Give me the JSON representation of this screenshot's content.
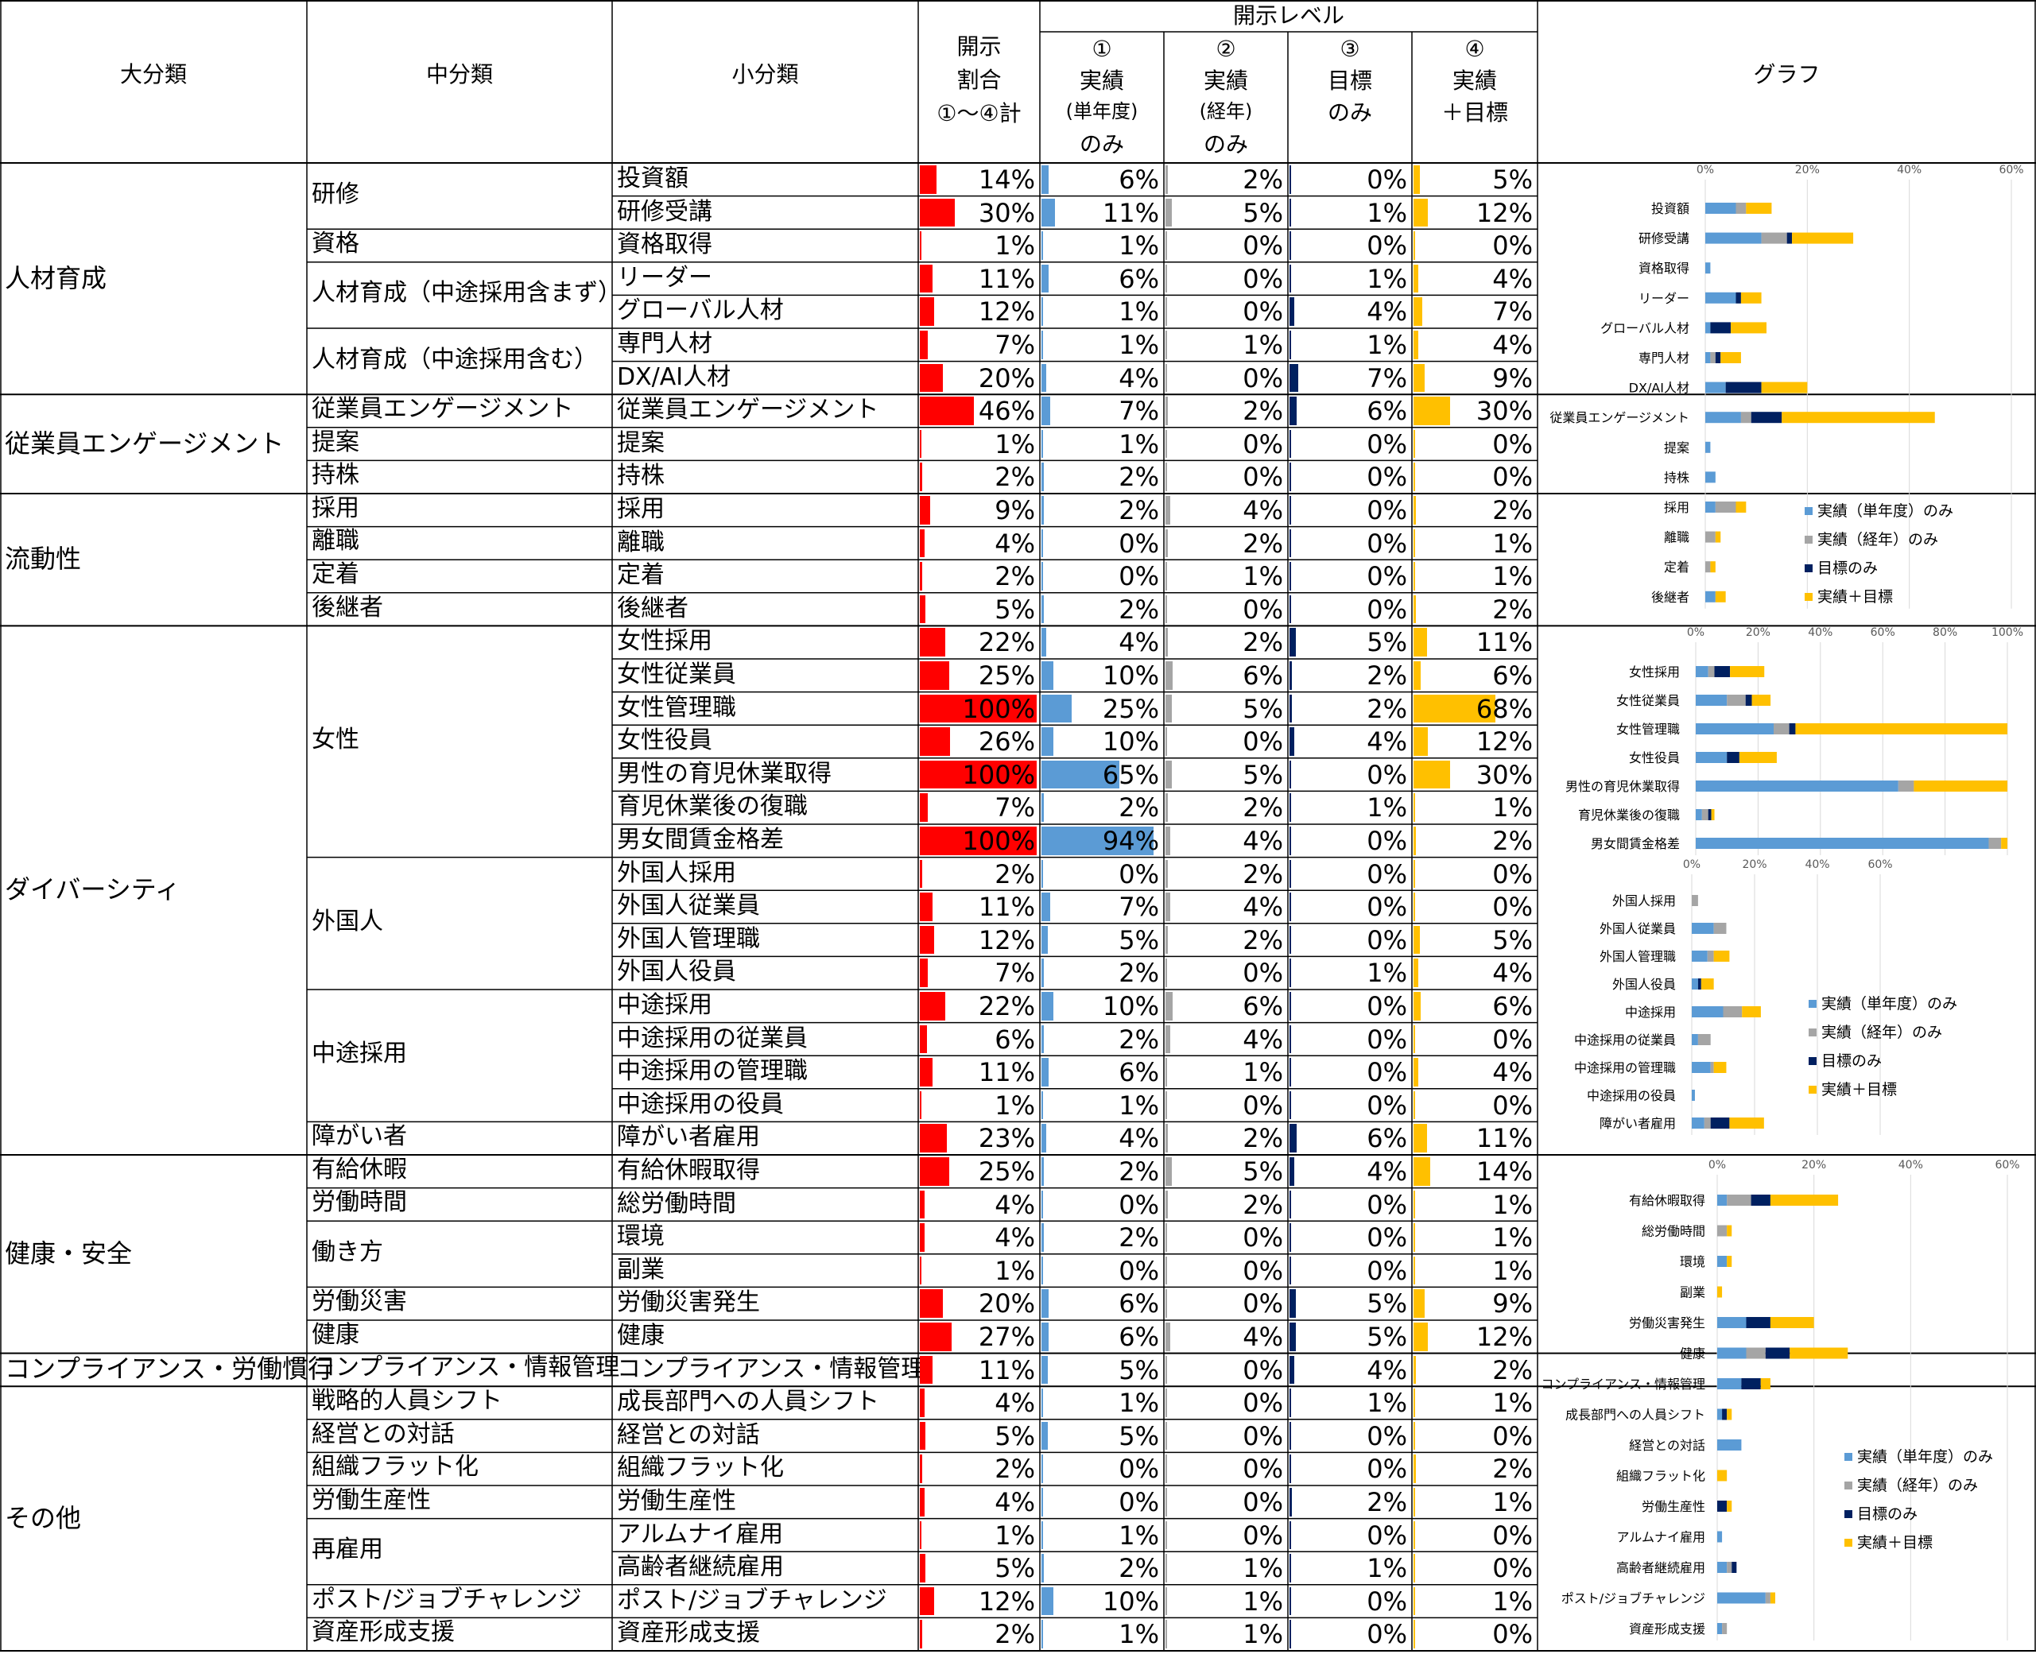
{
  "headers": {
    "dai": "大分類",
    "chu": "中分類",
    "sho": "小分類",
    "ratio": [
      "開示",
      "割合",
      "①～④計"
    ],
    "levels_title": "開示レベル",
    "lv1": [
      "①",
      "実績",
      "(単年度)",
      "のみ"
    ],
    "lv2": [
      "②",
      "実績",
      "(経年)",
      "のみ"
    ],
    "lv3": [
      "③",
      "目標",
      "のみ"
    ],
    "lv4": [
      "④",
      "実績",
      "＋目標"
    ],
    "graph": "グラフ"
  },
  "categories": [
    {
      "label": "人材育成",
      "start": 0,
      "end": 6
    },
    {
      "label": "従業員エンゲージメント",
      "start": 7,
      "end": 9
    },
    {
      "label": "流動性",
      "start": 10,
      "end": 13
    },
    {
      "label": "ダイバーシティ",
      "start": 14,
      "end": 29
    },
    {
      "label": "健康・安全",
      "start": 30,
      "end": 35
    },
    {
      "label": "コンプライアンス・労働慣行",
      "start": 36,
      "end": 36
    },
    {
      "label": "その他",
      "start": 37,
      "end": 44
    }
  ],
  "subcategories": [
    {
      "label": "研修",
      "start": 0,
      "end": 1
    },
    {
      "label": "資格",
      "start": 2,
      "end": 2
    },
    {
      "label": "人材育成（中途採用含まず）",
      "start": 3,
      "end": 4
    },
    {
      "label": "人材育成（中途採用含む）",
      "start": 5,
      "end": 6
    },
    {
      "label": "従業員エンゲージメント",
      "start": 7,
      "end": 7
    },
    {
      "label": "提案",
      "start": 8,
      "end": 8
    },
    {
      "label": "持株",
      "start": 9,
      "end": 9
    },
    {
      "label": "採用",
      "start": 10,
      "end": 10
    },
    {
      "label": "離職",
      "start": 11,
      "end": 11
    },
    {
      "label": "定着",
      "start": 12,
      "end": 12
    },
    {
      "label": "後継者",
      "start": 13,
      "end": 13
    },
    {
      "label": "女性",
      "start": 14,
      "end": 20
    },
    {
      "label": "外国人",
      "start": 21,
      "end": 24
    },
    {
      "label": "中途採用",
      "start": 25,
      "end": 28
    },
    {
      "label": "障がい者",
      "start": 29,
      "end": 29
    },
    {
      "label": "有給休暇",
      "start": 30,
      "end": 30
    },
    {
      "label": "労働時間",
      "start": 31,
      "end": 31
    },
    {
      "label": "働き方",
      "start": 32,
      "end": 33
    },
    {
      "label": "労働災害",
      "start": 34,
      "end": 34
    },
    {
      "label": "健康",
      "start": 35,
      "end": 35
    },
    {
      "label": "コンプライアンス・情報管理",
      "start": 36,
      "end": 36
    },
    {
      "label": "戦略的人員シフト",
      "start": 37,
      "end": 37
    },
    {
      "label": "経営との対話",
      "start": 38,
      "end": 38
    },
    {
      "label": "組織フラット化",
      "start": 39,
      "end": 39
    },
    {
      "label": "労働生産性",
      "start": 40,
      "end": 40
    },
    {
      "label": "再雇用",
      "start": 41,
      "end": 42
    },
    {
      "label": "ポスト/ジョブチャレンジ",
      "start": 43,
      "end": 43
    },
    {
      "label": "資産形成支援",
      "start": 44,
      "end": 44
    }
  ],
  "rows": [
    {
      "label": "投資額",
      "total": "14%",
      "l1": "6%",
      "l2": "2%",
      "l3": "0%",
      "l4": "5%"
    },
    {
      "label": "研修受講",
      "total": "30%",
      "l1": "11%",
      "l2": "5%",
      "l3": "1%",
      "l4": "12%"
    },
    {
      "label": "資格取得",
      "total": "1%",
      "l1": "1%",
      "l2": "0%",
      "l3": "0%",
      "l4": "0%"
    },
    {
      "label": "リーダー",
      "total": "11%",
      "l1": "6%",
      "l2": "0%",
      "l3": "1%",
      "l4": "4%"
    },
    {
      "label": "グローバル人材",
      "total": "12%",
      "l1": "1%",
      "l2": "0%",
      "l3": "4%",
      "l4": "7%"
    },
    {
      "label": "専門人材",
      "total": "7%",
      "l1": "1%",
      "l2": "1%",
      "l3": "1%",
      "l4": "4%"
    },
    {
      "label": "DX/AI人材",
      "total": "20%",
      "l1": "4%",
      "l2": "0%",
      "l3": "7%",
      "l4": "9%"
    },
    {
      "label": "従業員エンゲージメント",
      "total": "46%",
      "l1": "7%",
      "l2": "2%",
      "l3": "6%",
      "l4": "30%"
    },
    {
      "label": "提案",
      "total": "1%",
      "l1": "1%",
      "l2": "0%",
      "l3": "0%",
      "l4": "0%"
    },
    {
      "label": "持株",
      "total": "2%",
      "l1": "2%",
      "l2": "0%",
      "l3": "0%",
      "l4": "0%"
    },
    {
      "label": "採用",
      "total": "9%",
      "l1": "2%",
      "l2": "4%",
      "l3": "0%",
      "l4": "2%"
    },
    {
      "label": "離職",
      "total": "4%",
      "l1": "0%",
      "l2": "2%",
      "l3": "0%",
      "l4": "1%"
    },
    {
      "label": "定着",
      "total": "2%",
      "l1": "0%",
      "l2": "1%",
      "l3": "0%",
      "l4": "1%"
    },
    {
      "label": "後継者",
      "total": "5%",
      "l1": "2%",
      "l2": "0%",
      "l3": "0%",
      "l4": "2%"
    },
    {
      "label": "女性採用",
      "total": "22%",
      "l1": "4%",
      "l2": "2%",
      "l3": "5%",
      "l4": "11%"
    },
    {
      "label": "女性従業員",
      "total": "25%",
      "l1": "10%",
      "l2": "6%",
      "l3": "2%",
      "l4": "6%"
    },
    {
      "label": "女性管理職",
      "total": "100%",
      "l1": "25%",
      "l2": "5%",
      "l3": "2%",
      "l4": "68%"
    },
    {
      "label": "女性役員",
      "total": "26%",
      "l1": "10%",
      "l2": "0%",
      "l3": "4%",
      "l4": "12%"
    },
    {
      "label": "男性の育児休業取得",
      "total": "100%",
      "l1": "65%",
      "l2": "5%",
      "l3": "0%",
      "l4": "30%"
    },
    {
      "label": "育児休業後の復職",
      "total": "7%",
      "l1": "2%",
      "l2": "2%",
      "l3": "1%",
      "l4": "1%"
    },
    {
      "label": "男女間賃金格差",
      "total": "100%",
      "l1": "94%",
      "l2": "4%",
      "l3": "0%",
      "l4": "2%"
    },
    {
      "label": "外国人採用",
      "total": "2%",
      "l1": "0%",
      "l2": "2%",
      "l3": "0%",
      "l4": "0%"
    },
    {
      "label": "外国人従業員",
      "total": "11%",
      "l1": "7%",
      "l2": "4%",
      "l3": "0%",
      "l4": "0%"
    },
    {
      "label": "外国人管理職",
      "total": "12%",
      "l1": "5%",
      "l2": "2%",
      "l3": "0%",
      "l4": "5%"
    },
    {
      "label": "外国人役員",
      "total": "7%",
      "l1": "2%",
      "l2": "0%",
      "l3": "1%",
      "l4": "4%"
    },
    {
      "label": "中途採用",
      "total": "22%",
      "l1": "10%",
      "l2": "6%",
      "l3": "0%",
      "l4": "6%"
    },
    {
      "label": "中途採用の従業員",
      "total": "6%",
      "l1": "2%",
      "l2": "4%",
      "l3": "0%",
      "l4": "0%"
    },
    {
      "label": "中途採用の管理職",
      "total": "11%",
      "l1": "6%",
      "l2": "1%",
      "l3": "0%",
      "l4": "4%"
    },
    {
      "label": "中途採用の役員",
      "total": "1%",
      "l1": "1%",
      "l2": "0%",
      "l3": "0%",
      "l4": "0%"
    },
    {
      "label": "障がい者雇用",
      "total": "23%",
      "l1": "4%",
      "l2": "2%",
      "l3": "6%",
      "l4": "11%"
    },
    {
      "label": "有給休暇取得",
      "total": "25%",
      "l1": "2%",
      "l2": "5%",
      "l3": "4%",
      "l4": "14%"
    },
    {
      "label": "総労働時間",
      "total": "4%",
      "l1": "0%",
      "l2": "2%",
      "l3": "0%",
      "l4": "1%"
    },
    {
      "label": "環境",
      "total": "4%",
      "l1": "2%",
      "l2": "0%",
      "l3": "0%",
      "l4": "1%"
    },
    {
      "label": "副業",
      "total": "1%",
      "l1": "0%",
      "l2": "0%",
      "l3": "0%",
      "l4": "1%"
    },
    {
      "label": "労働災害発生",
      "total": "20%",
      "l1": "6%",
      "l2": "0%",
      "l3": "5%",
      "l4": "9%"
    },
    {
      "label": "健康",
      "total": "27%",
      "l1": "6%",
      "l2": "4%",
      "l3": "5%",
      "l4": "12%"
    },
    {
      "label": "コンプライアンス・情報管理",
      "total": "11%",
      "l1": "5%",
      "l2": "0%",
      "l3": "4%",
      "l4": "2%"
    },
    {
      "label": "成長部門への人員シフト",
      "total": "4%",
      "l1": "1%",
      "l2": "0%",
      "l3": "1%",
      "l4": "1%"
    },
    {
      "label": "経営との対話",
      "total": "5%",
      "l1": "5%",
      "l2": "0%",
      "l3": "0%",
      "l4": "0%"
    },
    {
      "label": "組織フラット化",
      "total": "2%",
      "l1": "0%",
      "l2": "0%",
      "l3": "0%",
      "l4": "2%"
    },
    {
      "label": "労働生産性",
      "total": "4%",
      "l1": "0%",
      "l2": "0%",
      "l3": "2%",
      "l4": "1%"
    },
    {
      "label": "アルムナイ雇用",
      "total": "1%",
      "l1": "1%",
      "l2": "0%",
      "l3": "0%",
      "l4": "0%"
    },
    {
      "label": "高齢者継続雇用",
      "total": "5%",
      "l1": "2%",
      "l2": "1%",
      "l3": "1%",
      "l4": "0%"
    },
    {
      "label": "ポスト/ジョブチャレンジ",
      "total": "12%",
      "l1": "10%",
      "l2": "1%",
      "l3": "0%",
      "l4": "1%"
    },
    {
      "label": "資産形成支援",
      "total": "2%",
      "l1": "1%",
      "l2": "1%",
      "l3": "0%",
      "l4": "0%"
    }
  ],
  "colors": {
    "total_bar": "#ff0000",
    "l1": "#5b9bd5",
    "l2": "#a5a5a5",
    "l3": "#002060",
    "l4": "#ffc000",
    "grid": "#000000"
  },
  "chart_data": [
    {
      "type": "bar",
      "stacked": true,
      "orientation": "horizontal",
      "categories": [
        "投資額",
        "研修受講",
        "資格取得",
        "リーダー",
        "グローバル人材",
        "専門人材",
        "DX/AI人材",
        "従業員エンゲージメント",
        "提案",
        "持株",
        "採用",
        "離職",
        "定着",
        "後継者"
      ],
      "xticks": [
        "0%",
        "20%",
        "40%",
        "60%"
      ],
      "xlim": [
        0,
        0.6
      ],
      "legend_position": "right",
      "series": [
        {
          "name": "実績（単年度）のみ",
          "values": [
            0.06,
            0.11,
            0.01,
            0.06,
            0.01,
            0.01,
            0.04,
            0.07,
            0.01,
            0.02,
            0.02,
            0.0,
            0.0,
            0.02
          ]
        },
        {
          "name": "実績（経年）のみ",
          "values": [
            0.02,
            0.05,
            0.0,
            0.0,
            0.0,
            0.01,
            0.0,
            0.02,
            0.0,
            0.0,
            0.04,
            0.02,
            0.01,
            0.0
          ]
        },
        {
          "name": "目標のみ",
          "values": [
            0.0,
            0.01,
            0.0,
            0.01,
            0.04,
            0.01,
            0.07,
            0.06,
            0.0,
            0.0,
            0.0,
            0.0,
            0.0,
            0.0
          ]
        },
        {
          "name": "実績＋目標",
          "values": [
            0.05,
            0.12,
            0.0,
            0.04,
            0.07,
            0.04,
            0.09,
            0.3,
            0.0,
            0.0,
            0.02,
            0.01,
            0.01,
            0.02
          ]
        }
      ]
    },
    {
      "type": "bar",
      "stacked": true,
      "orientation": "horizontal",
      "categories": [
        "女性採用",
        "女性従業員",
        "女性管理職",
        "女性役員",
        "男性の育児休業取得",
        "育児休業後の復職",
        "男女間賃金格差"
      ],
      "xticks": [
        "0%",
        "20%",
        "40%",
        "60%",
        "80%",
        "100%"
      ],
      "xlim": [
        0,
        1.0
      ],
      "series": [
        {
          "name": "実績（単年度）のみ",
          "values": [
            0.04,
            0.1,
            0.25,
            0.1,
            0.65,
            0.02,
            0.94
          ]
        },
        {
          "name": "実績（経年）のみ",
          "values": [
            0.02,
            0.06,
            0.05,
            0.0,
            0.05,
            0.02,
            0.04
          ]
        },
        {
          "name": "目標のみ",
          "values": [
            0.05,
            0.02,
            0.02,
            0.04,
            0.0,
            0.01,
            0.0
          ]
        },
        {
          "name": "実績＋目標",
          "values": [
            0.11,
            0.06,
            0.68,
            0.12,
            0.3,
            0.01,
            0.02
          ]
        }
      ]
    },
    {
      "type": "bar",
      "stacked": true,
      "orientation": "horizontal",
      "categories": [
        "外国人採用",
        "外国人従業員",
        "外国人管理職",
        "外国人役員",
        "中途採用",
        "中途採用の従業員",
        "中途採用の管理職",
        "中途採用の役員",
        "障がい者雇用"
      ],
      "xticks": [
        "0%",
        "20%",
        "40%",
        "60%"
      ],
      "xlim": [
        0,
        0.6
      ],
      "legend_position": "right",
      "series": [
        {
          "name": "実績（単年度）のみ",
          "values": [
            0.0,
            0.07,
            0.05,
            0.02,
            0.1,
            0.02,
            0.06,
            0.01,
            0.04
          ]
        },
        {
          "name": "実績（経年）のみ",
          "values": [
            0.02,
            0.04,
            0.02,
            0.0,
            0.06,
            0.04,
            0.01,
            0.0,
            0.02
          ]
        },
        {
          "name": "目標のみ",
          "values": [
            0.0,
            0.0,
            0.0,
            0.01,
            0.0,
            0.0,
            0.0,
            0.0,
            0.06
          ]
        },
        {
          "name": "実績＋目標",
          "values": [
            0.0,
            0.0,
            0.05,
            0.04,
            0.06,
            0.0,
            0.04,
            0.0,
            0.11
          ]
        }
      ]
    },
    {
      "type": "bar",
      "stacked": true,
      "orientation": "horizontal",
      "categories": [
        "有給休暇取得",
        "総労働時間",
        "環境",
        "副業",
        "労働災害発生",
        "健康",
        "コンプライアンス・情報管理",
        "成長部門への人員シフト",
        "経営との対話",
        "組織フラット化",
        "労働生産性",
        "アルムナイ雇用",
        "高齢者継続雇用",
        "ポスト/ジョブチャレンジ",
        "資産形成支援"
      ],
      "xticks": [
        "0%",
        "20%",
        "40%",
        "60%"
      ],
      "xlim": [
        0,
        0.6
      ],
      "legend_position": "right",
      "series": [
        {
          "name": "実績（単年度）のみ",
          "values": [
            0.02,
            0.0,
            0.02,
            0.0,
            0.06,
            0.06,
            0.05,
            0.01,
            0.05,
            0.0,
            0.0,
            0.01,
            0.02,
            0.1,
            0.01
          ]
        },
        {
          "name": "実績（経年）のみ",
          "values": [
            0.05,
            0.02,
            0.0,
            0.0,
            0.0,
            0.04,
            0.0,
            0.0,
            0.0,
            0.0,
            0.0,
            0.0,
            0.01,
            0.01,
            0.01
          ]
        },
        {
          "name": "目標のみ",
          "values": [
            0.04,
            0.0,
            0.0,
            0.0,
            0.05,
            0.05,
            0.04,
            0.01,
            0.0,
            0.0,
            0.02,
            0.0,
            0.01,
            0.0,
            0.0
          ]
        },
        {
          "name": "実績＋目標",
          "values": [
            0.14,
            0.01,
            0.01,
            0.01,
            0.09,
            0.12,
            0.02,
            0.01,
            0.0,
            0.02,
            0.01,
            0.0,
            0.0,
            0.01,
            0.0
          ]
        }
      ]
    }
  ]
}
